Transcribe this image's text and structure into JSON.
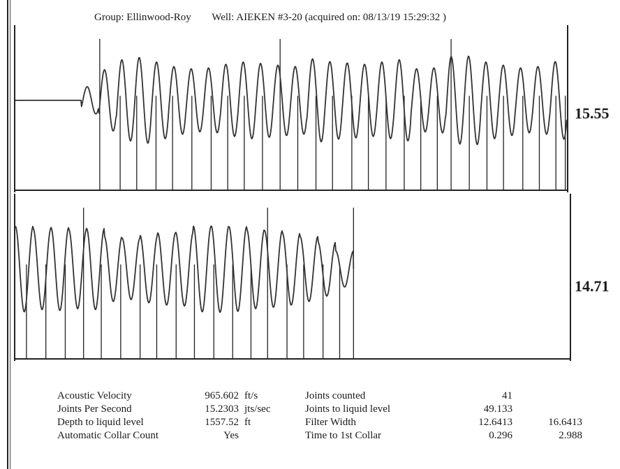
{
  "header": {
    "group": "Group: Ellinwood-Roy",
    "well": "Well: AIEKEN #3-20 (acquired on: 08/13/19 15:29:32 )"
  },
  "chart_data": [
    {
      "type": "line",
      "title": "",
      "xlabel": "",
      "ylabel": "",
      "grid": false,
      "legend": "none",
      "side_value": "15.55",
      "quiet_fraction": 0.12,
      "cycles_after_onset": 28,
      "series": [
        {
          "name": "",
          "values": [
            0.55,
            0.68,
            0.9,
            0.95,
            0.85,
            0.75,
            0.7,
            0.72,
            0.8,
            0.85,
            0.82,
            0.78,
            0.75,
            0.92,
            0.86,
            0.83,
            0.8,
            0.85,
            0.9,
            0.7,
            0.72,
            0.97,
            0.98,
            0.85,
            0.78,
            0.72,
            0.75,
            0.86,
            0.9
          ]
        }
      ],
      "collar_markers_tall": [
        0.153,
        0.48,
        0.79
      ],
      "collar_markers": [
        0.153,
        0.19,
        0.22,
        0.255,
        0.285,
        0.32,
        0.355,
        0.385,
        0.415,
        0.448,
        0.48,
        0.512,
        0.545,
        0.575,
        0.61,
        0.64,
        0.672,
        0.705,
        0.735,
        0.765,
        0.79,
        0.823,
        0.855,
        0.885,
        0.92,
        0.95,
        0.98,
        0.997
      ]
    },
    {
      "type": "line",
      "title": "",
      "xlabel": "",
      "ylabel": "",
      "grid": false,
      "legend": "none",
      "side_value": "14.71",
      "cycles": 19,
      "signal_end_fraction": 0.61,
      "series": [
        {
          "name": "",
          "values": [
            0.95,
            0.9,
            0.92,
            0.88,
            0.9,
            0.72,
            0.68,
            0.75,
            0.8,
            0.82,
            0.95,
            0.96,
            0.94,
            0.88,
            0.85,
            0.8,
            0.72,
            0.6,
            0.4
          ]
        }
      ],
      "collar_markers_tall": [
        0.123,
        0.455,
        0.61
      ],
      "collar_markers": [
        0.02,
        0.055,
        0.09,
        0.123,
        0.155,
        0.19,
        0.225,
        0.255,
        0.29,
        0.323,
        0.358,
        0.392,
        0.425,
        0.455,
        0.49,
        0.52,
        0.555,
        0.585,
        0.61
      ]
    }
  ],
  "results": {
    "rows": [
      {
        "label1": "Acoustic Velocity",
        "val1": "965.602",
        "unit1": "ft/s",
        "label2": "Joints counted",
        "val2": "41",
        "val3": ""
      },
      {
        "label1": "Joints Per Second",
        "val1": "15.2303",
        "unit1": "jts/sec",
        "label2": "Joints to liquid level",
        "val2": "49.133",
        "val3": ""
      },
      {
        "label1": "Depth to liquid level",
        "val1": "1557.52",
        "unit1": "ft",
        "label2": "Filter Width",
        "val2": "12.6413",
        "val3": "16.6413"
      },
      {
        "label1": "Automatic Collar Count",
        "val1": "Yes",
        "unit1": "",
        "label2": "Time to 1st Collar",
        "val2": "0.296",
        "val3": "2.988"
      }
    ]
  }
}
